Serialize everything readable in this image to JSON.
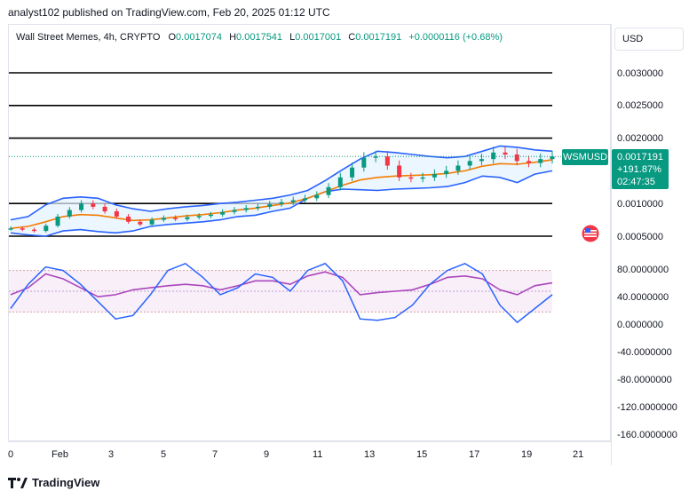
{
  "header": {
    "publish_line": "analyst102 published on TradingView.com, Feb 20, 2025 01:12 UTC"
  },
  "legend": {
    "symbol_line": "Wall Street Memes, 4h, CRYPTO",
    "o_key": "O",
    "o_val": "0.0017074",
    "h_key": "H",
    "h_val": "0.0017541",
    "l_key": "L",
    "l_val": "0.0017001",
    "c_key": "C",
    "c_val": "0.0017191",
    "change": "+0.0000116 (+0.68%)"
  },
  "currency_button": "USD",
  "price_axis": [
    "0.0030000",
    "0.0025000",
    "0.0020000",
    "0.0010000",
    "0.0005000"
  ],
  "osc_axis": [
    "80.0000000",
    "40.0000000",
    "0.0000000",
    "-40.0000000",
    "-80.0000000",
    "-120.0000000",
    "-160.0000000"
  ],
  "time_axis": [
    "0",
    "Feb",
    "3",
    "5",
    "7",
    "9",
    "11",
    "13",
    "15",
    "17",
    "19",
    "21"
  ],
  "symbol_tag": "WSMUSD",
  "price_box": {
    "price": "0.0017191",
    "change_pct": "+191.87%",
    "countdown": "02:47:35"
  },
  "brand": "TradingView",
  "colors": {
    "up": "#089981",
    "down": "#f23645",
    "bollinger": "#2962ff",
    "ma": "#f57c00",
    "stoch_k": "#2962ff",
    "rsi": "#ab47bc",
    "band_fill": "#e3f2fd"
  },
  "chart_data": {
    "type": "line",
    "series": [
      {
        "name": "",
        "role": "horizontal levels",
        "values": [
          0.003,
          0.0025,
          0.002,
          0.001,
          0.0005
        ]
      },
      {
        "name": "",
        "role": "close",
        "values": [
          0.00062,
          0.0006,
          0.00058,
          0.00066,
          0.0008,
          0.0009,
          0.001,
          0.00095,
          0.00088,
          0.0008,
          0.00072,
          0.00068,
          0.00075,
          0.00078,
          0.00076,
          0.00079,
          0.00081,
          0.00083,
          0.00087,
          0.0009,
          0.00093,
          0.00095,
          0.00099,
          0.00102,
          0.00105,
          0.00108,
          0.00113,
          0.00125,
          0.0014,
          0.00155,
          0.0017,
          0.00172,
          0.00158,
          0.0014,
          0.00138,
          0.0014,
          0.00145,
          0.0015,
          0.00158,
          0.00165,
          0.00168,
          0.00178,
          0.00175,
          0.00165,
          0.00162,
          0.00168,
          0.00172
        ]
      },
      {
        "name": "",
        "role": "bollinger upper",
        "values": [
          0.00075,
          0.0008,
          0.00098,
          0.00108,
          0.0011,
          0.00108,
          0.00098,
          0.00092,
          0.00088,
          0.00092,
          0.00095,
          0.00097,
          0.001,
          0.00102,
          0.00105,
          0.00108,
          0.00113,
          0.0012,
          0.00135,
          0.00152,
          0.00168,
          0.0018,
          0.00178,
          0.00175,
          0.00172,
          0.0017,
          0.00172,
          0.0018,
          0.00188,
          0.00186,
          0.00182,
          0.0018
        ]
      },
      {
        "name": "",
        "role": "bollinger lower",
        "values": [
          0.00055,
          0.00052,
          0.0005,
          0.00058,
          0.0006,
          0.00057,
          0.00055,
          0.00058,
          0.00065,
          0.00068,
          0.0007,
          0.00072,
          0.00075,
          0.0008,
          0.00082,
          0.00088,
          0.00093,
          0.00108,
          0.00118,
          0.00122,
          0.00121,
          0.0012,
          0.00122,
          0.00123,
          0.00124,
          0.00126,
          0.00132,
          0.00142,
          0.0014,
          0.00132,
          0.00145,
          0.0015
        ]
      },
      {
        "name": "",
        "role": "moving average",
        "values": [
          0.00062,
          0.00065,
          0.00072,
          0.0008,
          0.00083,
          0.00082,
          0.00078,
          0.00074,
          0.00075,
          0.00078,
          0.00081,
          0.00083,
          0.00086,
          0.0009,
          0.00093,
          0.00097,
          0.00101,
          0.00108,
          0.00118,
          0.00128,
          0.00136,
          0.0014,
          0.00142,
          0.00143,
          0.00144,
          0.00146,
          0.0015,
          0.00157,
          0.00161,
          0.0016,
          0.00163,
          0.00167
        ]
      },
      {
        "name": "",
        "role": "stochastic",
        "values": [
          25,
          60,
          85,
          80,
          60,
          35,
          10,
          15,
          45,
          80,
          90,
          70,
          45,
          55,
          75,
          70,
          50,
          80,
          90,
          65,
          10,
          8,
          12,
          30,
          60,
          80,
          90,
          75,
          30,
          5,
          25,
          45
        ]
      },
      {
        "name": "",
        "role": "rsi",
        "values": [
          45,
          55,
          75,
          68,
          55,
          42,
          45,
          52,
          55,
          58,
          60,
          58,
          52,
          58,
          65,
          65,
          60,
          72,
          78,
          70,
          45,
          48,
          50,
          52,
          60,
          70,
          72,
          68,
          52,
          45,
          58,
          62
        ]
      }
    ],
    "y_range_price": [
      0.0003,
      0.0033
    ],
    "y_range_osc": [
      -170,
      100
    ],
    "osc_bands": [
      80,
      20
    ]
  }
}
